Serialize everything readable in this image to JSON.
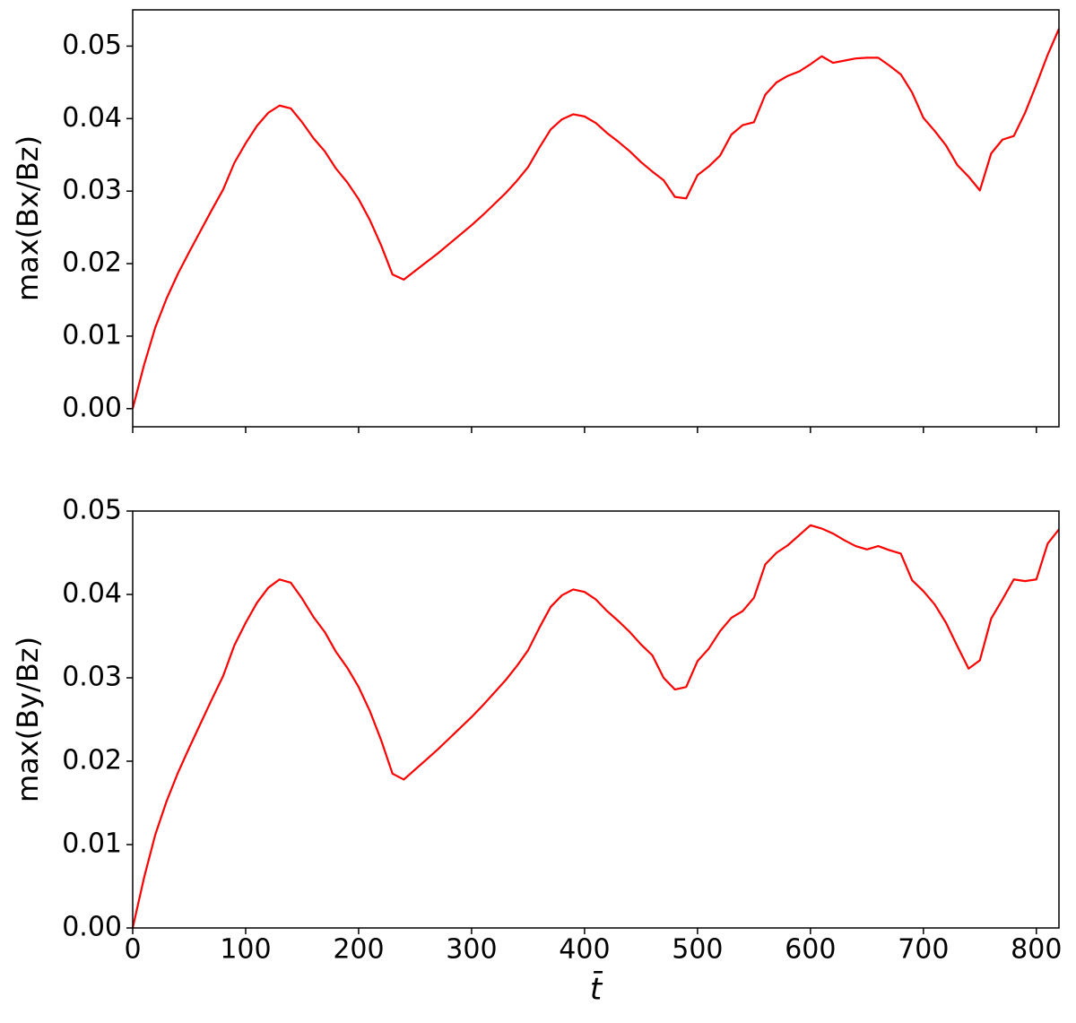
{
  "chart_data": [
    {
      "type": "line",
      "ylabel": "max(Bx/Bz)",
      "x": [
        0,
        10,
        20,
        30,
        40,
        50,
        60,
        70,
        80,
        90,
        100,
        110,
        120,
        130,
        140,
        150,
        160,
        170,
        180,
        190,
        200,
        210,
        220,
        230,
        240,
        250,
        260,
        270,
        280,
        290,
        300,
        310,
        320,
        330,
        340,
        350,
        360,
        370,
        380,
        390,
        400,
        410,
        420,
        430,
        440,
        450,
        460,
        470,
        480,
        490,
        500,
        510,
        520,
        530,
        540,
        550,
        560,
        570,
        580,
        590,
        600,
        610,
        620,
        630,
        640,
        650,
        660,
        670,
        680,
        690,
        700,
        710,
        720,
        730,
        740,
        750,
        760,
        770,
        780,
        790,
        800,
        810,
        820
      ],
      "series": [
        {
          "color": "#ff0000",
          "values": [
            0,
            0.006,
            0.0112,
            0.0152,
            0.0186,
            0.0216,
            0.0245,
            0.0274,
            0.0302,
            0.0339,
            0.0366,
            0.039,
            0.0408,
            0.0418,
            0.0414,
            0.0395,
            0.0373,
            0.0355,
            0.0331,
            0.0312,
            0.0289,
            0.026,
            0.0225,
            0.0185,
            0.0178,
            0.019,
            0.0202,
            0.0214,
            0.0227,
            0.024,
            0.0253,
            0.0267,
            0.0282,
            0.0297,
            0.0314,
            0.0333,
            0.036,
            0.0385,
            0.0399,
            0.0406,
            0.0403,
            0.0394,
            0.038,
            0.0368,
            0.0355,
            0.034,
            0.0327,
            0.0315,
            0.0292,
            0.029,
            0.0322,
            0.0334,
            0.0349,
            0.0378,
            0.0391,
            0.0395,
            0.0433,
            0.045,
            0.0459,
            0.0465,
            0.0475,
            0.0486,
            0.0477,
            0.048,
            0.0483,
            0.0484,
            0.0484,
            0.0473,
            0.0461,
            0.0436,
            0.0401,
            0.0383,
            0.0363,
            0.0336,
            0.032,
            0.0301,
            0.0352,
            0.0371,
            0.0376,
            0.0408,
            0.0447,
            0.0488,
            0.0524
          ]
        }
      ],
      "xlim": [
        0,
        820
      ],
      "ylim": [
        -0.0025,
        0.055
      ],
      "xticks": [
        0,
        100,
        200,
        300,
        400,
        500,
        600,
        700,
        800
      ],
      "show_xtick_labels": false,
      "yticks": [
        {
          "value": 0,
          "label": "0.00"
        },
        {
          "value": 0.01,
          "label": "0.01"
        },
        {
          "value": 0.02,
          "label": "0.02"
        },
        {
          "value": 0.03,
          "label": "0.03"
        },
        {
          "value": 0.04,
          "label": "0.04"
        },
        {
          "value": 0.05,
          "label": "0.05"
        }
      ]
    },
    {
      "type": "line",
      "ylabel": "max(By/Bz)",
      "xlabel": "t̄",
      "x": [
        0,
        10,
        20,
        30,
        40,
        50,
        60,
        70,
        80,
        90,
        100,
        110,
        120,
        130,
        140,
        150,
        160,
        170,
        180,
        190,
        200,
        210,
        220,
        230,
        240,
        250,
        260,
        270,
        280,
        290,
        300,
        310,
        320,
        330,
        340,
        350,
        360,
        370,
        380,
        390,
        400,
        410,
        420,
        430,
        440,
        450,
        460,
        470,
        480,
        490,
        500,
        510,
        520,
        530,
        540,
        550,
        560,
        570,
        580,
        590,
        600,
        610,
        620,
        630,
        640,
        650,
        660,
        670,
        680,
        690,
        700,
        710,
        720,
        730,
        740,
        750,
        760,
        770,
        780,
        790,
        800,
        810,
        820
      ],
      "series": [
        {
          "color": "#ff0000",
          "values": [
            0,
            0.006,
            0.0112,
            0.0152,
            0.0186,
            0.0216,
            0.0245,
            0.0274,
            0.0302,
            0.0339,
            0.0366,
            0.039,
            0.0408,
            0.0418,
            0.0414,
            0.0395,
            0.0373,
            0.0355,
            0.0331,
            0.0312,
            0.0289,
            0.026,
            0.0225,
            0.0185,
            0.0178,
            0.019,
            0.0202,
            0.0214,
            0.0227,
            0.024,
            0.0253,
            0.0267,
            0.0282,
            0.0297,
            0.0314,
            0.0333,
            0.036,
            0.0385,
            0.0399,
            0.0406,
            0.0403,
            0.0394,
            0.038,
            0.0368,
            0.0355,
            0.034,
            0.0327,
            0.03,
            0.0286,
            0.0289,
            0.032,
            0.0335,
            0.0356,
            0.0372,
            0.038,
            0.0396,
            0.0436,
            0.045,
            0.0459,
            0.0471,
            0.0483,
            0.0479,
            0.0473,
            0.0465,
            0.0458,
            0.0454,
            0.0458,
            0.0453,
            0.0449,
            0.0417,
            0.0404,
            0.0388,
            0.0366,
            0.0338,
            0.0311,
            0.0321,
            0.0371,
            0.0394,
            0.0418,
            0.0416,
            0.0418,
            0.0461,
            0.0478
          ]
        }
      ],
      "xlim": [
        0,
        820
      ],
      "ylim": [
        0,
        0.05
      ],
      "xticks": [
        0,
        100,
        200,
        300,
        400,
        500,
        600,
        700,
        800
      ],
      "show_xtick_labels": true,
      "yticks": [
        {
          "value": 0,
          "label": "0.00"
        },
        {
          "value": 0.01,
          "label": "0.01"
        },
        {
          "value": 0.02,
          "label": "0.02"
        },
        {
          "value": 0.03,
          "label": "0.03"
        },
        {
          "value": 0.04,
          "label": "0.04"
        },
        {
          "value": 0.05,
          "label": "0.05"
        }
      ]
    }
  ]
}
